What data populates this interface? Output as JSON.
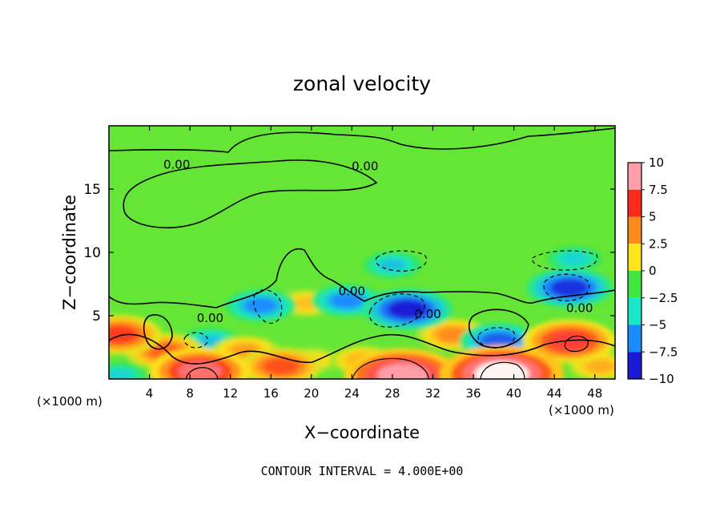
{
  "chart_data": {
    "type": "heatmap",
    "title": "zonal velocity",
    "xlabel": "X−coordinate",
    "ylabel": "Z−coordinate",
    "x_unit_left": "(×1000 m)",
    "x_unit_right": "(×1000 m)",
    "xlim": [
      0,
      50
    ],
    "ylim": [
      0,
      20
    ],
    "x_ticks": [
      4,
      8,
      12,
      16,
      20,
      24,
      28,
      32,
      36,
      40,
      44,
      48
    ],
    "x_tick_labels": [
      "4",
      "8",
      "12",
      "16",
      "20",
      "24",
      "28",
      "32",
      "36",
      "40",
      "44",
      "48"
    ],
    "y_ticks": [
      5,
      10,
      15
    ],
    "y_tick_labels": [
      "5",
      "10",
      "15"
    ],
    "colorbar": {
      "range": [
        -10,
        10
      ],
      "levels": [
        10,
        7.5,
        5,
        2.5,
        0,
        -2.5,
        -5,
        -7.5,
        -10
      ],
      "labels": [
        "10",
        "7.5",
        "5",
        "2.5",
        "0",
        "−2.5",
        "−5",
        "−7.5",
        "−10"
      ],
      "colors": [
        "#ff9ea8",
        "#ff2a1a",
        "#ff8c1a",
        "#ffe41a",
        "#3ee63e",
        "#1ae6c8",
        "#1a8cff",
        "#1a1ad6",
        "#7a1ab4"
      ]
    },
    "background_value": 0.5,
    "features": [
      {
        "x": 29.5,
        "z": 5.5,
        "value": -7.5
      },
      {
        "x": 45.5,
        "z": 7.2,
        "value": -7.0
      },
      {
        "x": 38.5,
        "z": 3.0,
        "value": -6.0
      },
      {
        "x": 15.0,
        "z": 5.8,
        "value": -5.0
      },
      {
        "x": 28.0,
        "z": 9.0,
        "value": -3.5
      },
      {
        "x": 46.0,
        "z": 9.5,
        "value": -3.0
      },
      {
        "x": 10.0,
        "z": 3.0,
        "value": -3.5
      },
      {
        "x": 23.5,
        "z": 6.2,
        "value": -5.0
      },
      {
        "x": 35.0,
        "z": 0.3,
        "value": -3.5
      },
      {
        "x": 1.0,
        "z": 0.3,
        "value": -3.0
      },
      {
        "x": 29.0,
        "z": 0.3,
        "value": 11.0
      },
      {
        "x": 38.8,
        "z": 0.4,
        "value": 12.0
      },
      {
        "x": 9.0,
        "z": 0.6,
        "value": 9.0
      },
      {
        "x": 45.5,
        "z": 3.0,
        "value": 8.0
      },
      {
        "x": 1.0,
        "z": 3.5,
        "value": 7.0
      },
      {
        "x": 17.0,
        "z": 1.0,
        "value": 6.5
      },
      {
        "x": 5.5,
        "z": 2.2,
        "value": 6.0
      },
      {
        "x": 34.0,
        "z": 3.5,
        "value": 5.0
      },
      {
        "x": 13.5,
        "z": 2.2,
        "value": 4.5
      },
      {
        "x": 19.5,
        "z": 6.0,
        "value": 3.5
      },
      {
        "x": 25.0,
        "z": 1.5,
        "value": 4.0
      },
      {
        "x": 48.5,
        "z": 1.0,
        "value": 4.0
      },
      {
        "x": 42.0,
        "z": 1.0,
        "value": 3.5
      },
      {
        "x": 20.0,
        "z": 1.5,
        "value": 3.0
      }
    ],
    "contour_labels": [
      {
        "text": "0.00",
        "x": 6.7,
        "z": 16.6
      },
      {
        "text": "0.00",
        "x": 25.3,
        "z": 16.5
      },
      {
        "text": "0.00",
        "x": 24.0,
        "z": 6.6
      },
      {
        "text": "0.00",
        "x": 10.0,
        "z": 4.5
      },
      {
        "text": "0.00",
        "x": 31.5,
        "z": 4.8
      },
      {
        "text": "0.00",
        "x": 46.5,
        "z": 5.3
      }
    ],
    "contour_interval_label": "CONTOUR INTERVAL = 4.000E+00"
  }
}
